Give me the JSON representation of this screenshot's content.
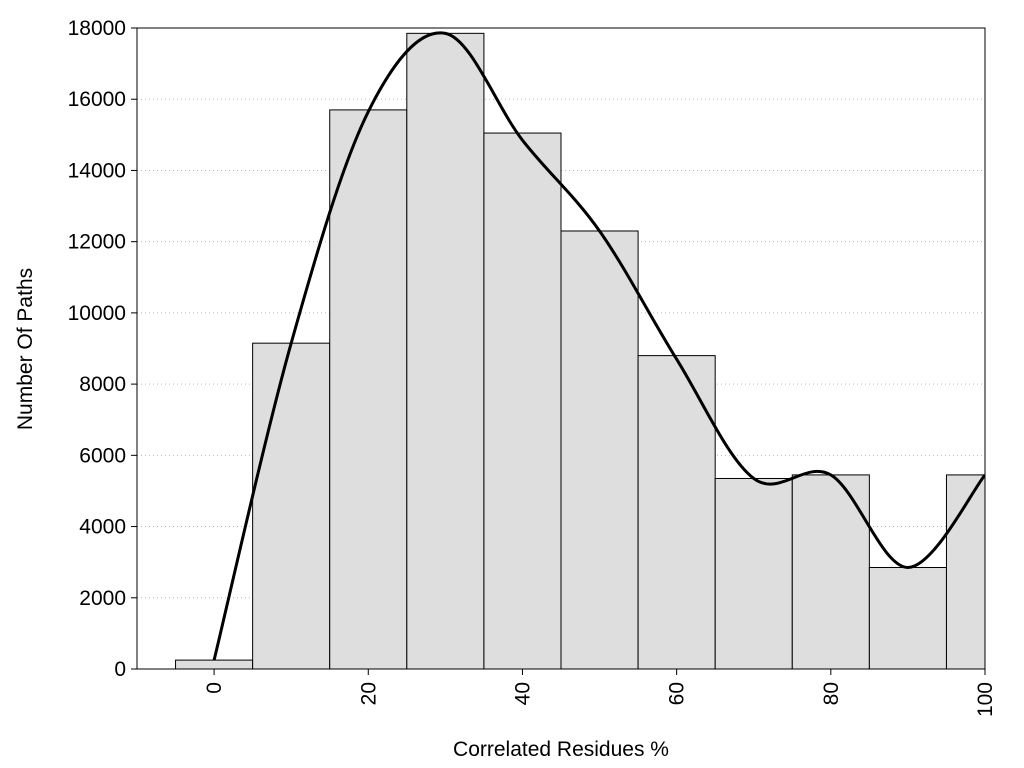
{
  "chart_data": {
    "type": "histogram",
    "xlabel": "Correlated Residues %",
    "ylabel": "Number Of Paths",
    "bins": [
      -5,
      5,
      15,
      25,
      35,
      45,
      55,
      65,
      75,
      85,
      95,
      105
    ],
    "values": [
      250,
      9150,
      15700,
      17850,
      15050,
      12300,
      8800,
      5350,
      5450,
      2850,
      5450
    ],
    "color": "#dedede",
    "curve": {
      "x": [
        0,
        10,
        20,
        30,
        40,
        50,
        60,
        70,
        80,
        90,
        100
      ],
      "values": [
        250,
        9150,
        15650,
        17850,
        14850,
        12300,
        8700,
        5350,
        5450,
        2850,
        5450
      ],
      "color": "#000000"
    },
    "xlim": [
      -10,
      100
    ],
    "ylim": [
      0,
      18000
    ],
    "xticks": [
      0,
      20,
      40,
      60,
      80,
      100
    ],
    "yticks": [
      0,
      2000,
      4000,
      6000,
      8000,
      10000,
      12000,
      14000,
      16000,
      18000
    ],
    "grid": true
  }
}
